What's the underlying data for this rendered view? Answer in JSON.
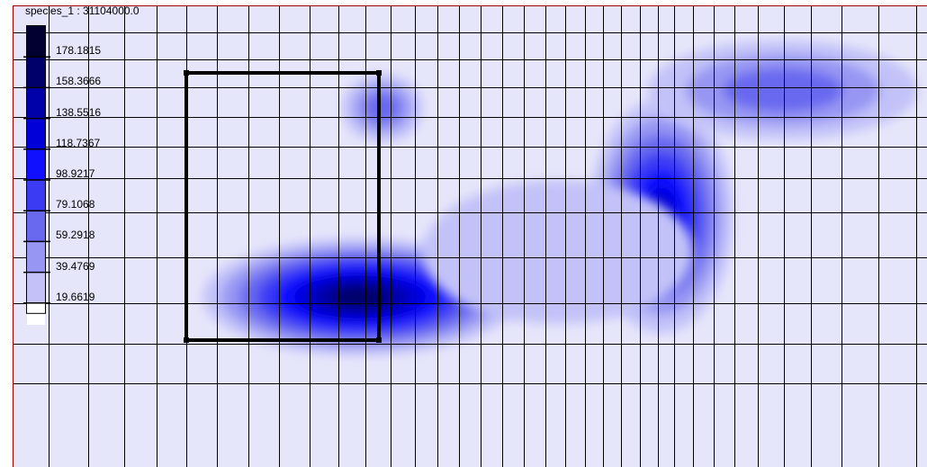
{
  "chart_data": {
    "type": "heatmap",
    "title": "species_1 : 31104000.0",
    "grid": true,
    "legend": {
      "placement": "top-left",
      "levels": [
        "178.1815",
        "158.3666",
        "138.5516",
        "118.7367",
        "98.9217",
        "79.1068",
        "59.2918",
        "39.4769",
        "19.6619"
      ],
      "colors": [
        "#000030",
        "#00006a",
        "#0000a8",
        "#0000d8",
        "#1010ff",
        "#3b3bf4",
        "#6969f0",
        "#9797f3",
        "#c2c2f9",
        "#e6e6fa"
      ]
    }
  },
  "colors": {
    "background": "#e6e6fa",
    "frame": "#a00000",
    "grid": "#000000",
    "selection": "#000000"
  }
}
